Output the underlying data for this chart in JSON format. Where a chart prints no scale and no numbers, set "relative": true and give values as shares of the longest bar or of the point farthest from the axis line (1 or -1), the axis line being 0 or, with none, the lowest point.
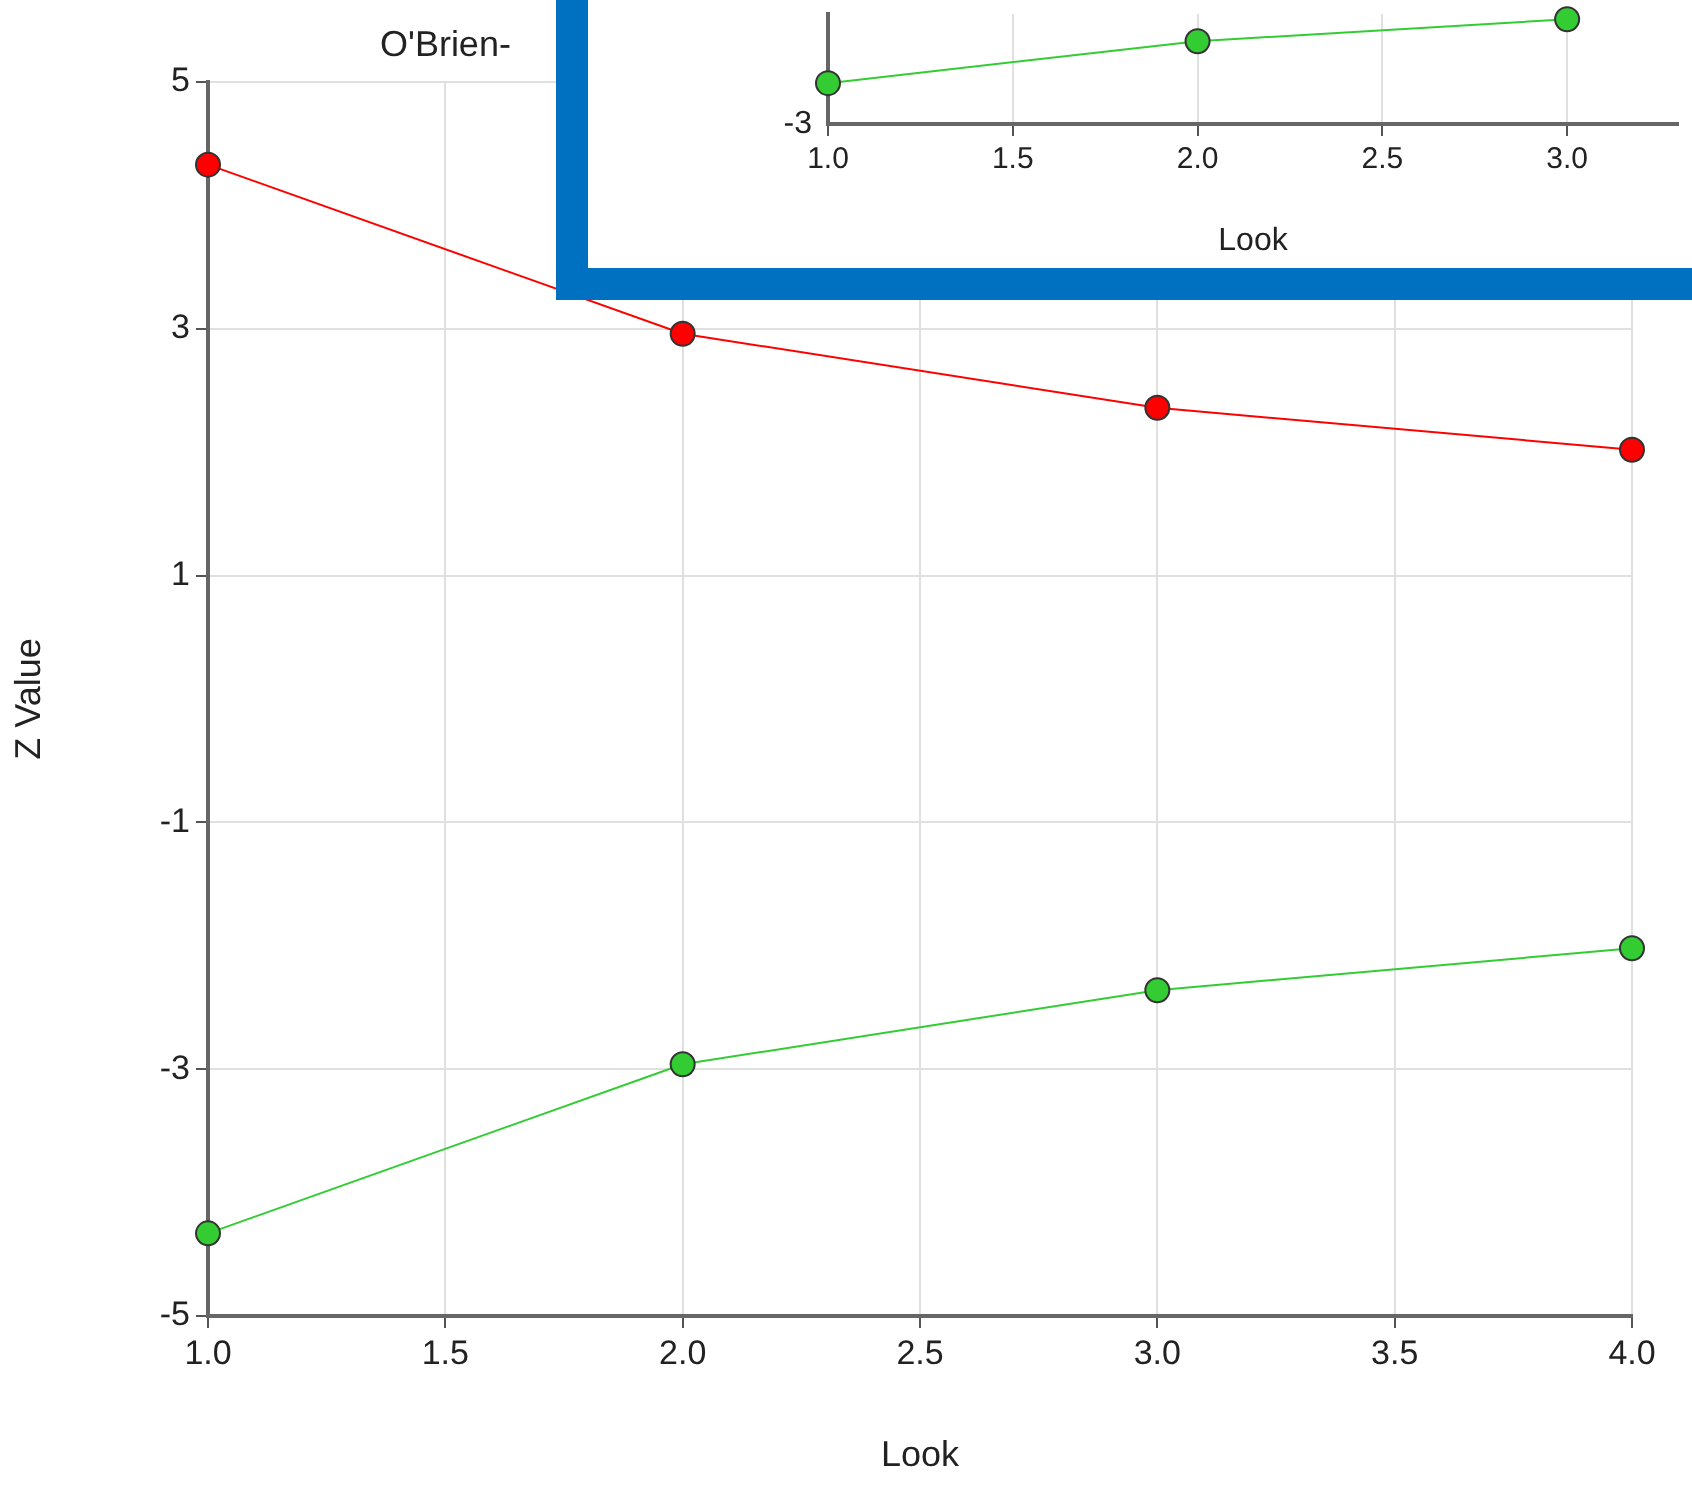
{
  "chart_data": [
    {
      "type": "line",
      "title": "O'Brien-",
      "xlabel": "Look",
      "ylabel": "Z Value",
      "x": [
        1,
        2,
        3,
        4
      ],
      "series": [
        {
          "color": "#ff0000",
          "values": [
            4.33,
            2.96,
            2.36,
            2.02
          ]
        },
        {
          "color": "#33cc33",
          "values": [
            -4.33,
            -2.96,
            -2.36,
            -2.02
          ]
        }
      ],
      "xlim": [
        1,
        4
      ],
      "xticks": [
        {
          "value": 1,
          "label": "1.0"
        },
        {
          "value": 1.5,
          "label": "1.5"
        },
        {
          "value": 2,
          "label": "2.0"
        },
        {
          "value": 2.5,
          "label": "2.5"
        },
        {
          "value": 3,
          "label": "3.0"
        },
        {
          "value": 3.5,
          "label": "3.5"
        },
        {
          "value": 4,
          "label": "4.0"
        }
      ],
      "ylim": [
        -5,
        5
      ],
      "yticks": [
        -5,
        -3,
        -1,
        1,
        3,
        5
      ],
      "grid": true,
      "legend": false,
      "marker": "circle"
    },
    {
      "type": "line",
      "xlabel": "Look",
      "x": [
        1,
        2,
        3
      ],
      "relative": true,
      "series": [
        {
          "color": "#33cc33",
          "values": [
            0.39,
            0.79,
            1
          ]
        }
      ],
      "annotations": [
        "-3"
      ],
      "xlim": [
        1,
        3.3
      ],
      "xticks": [
        {
          "value": 1,
          "label": "1.0"
        },
        {
          "value": 1.5,
          "label": "1.5"
        },
        {
          "value": 2,
          "label": "2.0"
        },
        {
          "value": 2.5,
          "label": "2.5"
        },
        {
          "value": 3,
          "label": "3.0"
        }
      ],
      "grid": "x",
      "legend": false,
      "marker": "circle"
    }
  ]
}
